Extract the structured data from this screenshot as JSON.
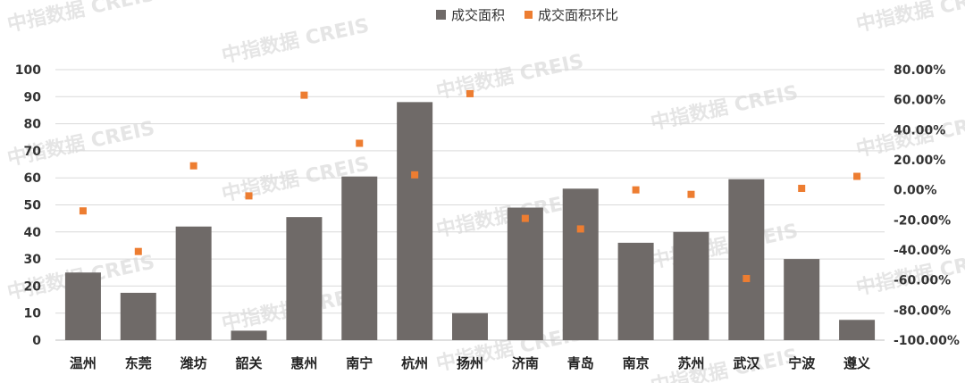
{
  "watermark": "中指数据 CREIS",
  "chart_data": {
    "type": "bar",
    "categories": [
      "温州",
      "东莞",
      "潍坊",
      "韶关",
      "惠州",
      "南宁",
      "杭州",
      "扬州",
      "济南",
      "青岛",
      "南京",
      "苏州",
      "武汉",
      "宁波",
      "遵义"
    ],
    "series": [
      {
        "name": "成交面积",
        "type": "bar",
        "axis": "left",
        "color": "#6f6a68",
        "values": [
          25,
          17.5,
          42,
          3.5,
          45.5,
          60.5,
          88,
          10,
          49,
          56,
          36,
          40,
          59.5,
          30,
          7.5
        ]
      },
      {
        "name": "成交面积环比",
        "type": "scatter",
        "axis": "right",
        "color": "#ed7d31",
        "values": [
          -14,
          -41,
          16,
          -4,
          63,
          31,
          10,
          64,
          -19,
          -26,
          0,
          -3,
          -59,
          1,
          9
        ]
      }
    ],
    "y_left": {
      "min": 0,
      "max": 100,
      "step": 10,
      "ticks": [
        "0",
        "10",
        "20",
        "30",
        "40",
        "50",
        "60",
        "70",
        "80",
        "90",
        "100"
      ]
    },
    "y_right": {
      "min": -100,
      "max": 80,
      "step": 20,
      "ticks": [
        "-100.00%",
        "-80.00%",
        "-60.00%",
        "-40.00%",
        "-20.00%",
        "0.00%",
        "20.00%",
        "40.00%",
        "60.00%",
        "80.00%"
      ]
    },
    "grid": true,
    "legend_position": "top-center"
  }
}
